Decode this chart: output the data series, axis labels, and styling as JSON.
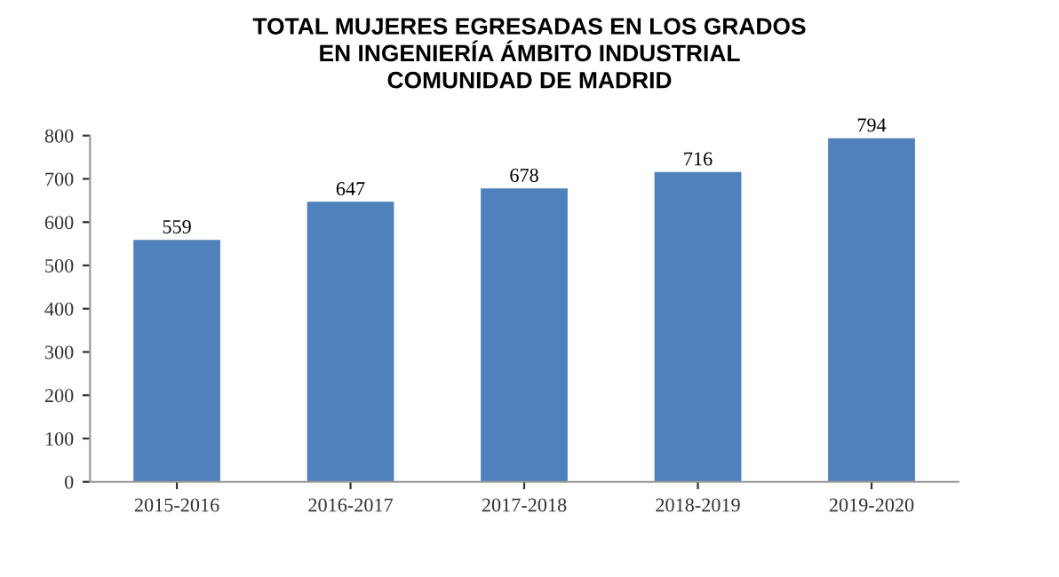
{
  "chart_data": {
    "type": "bar",
    "title": "TOTAL MUJERES EGRESADAS EN LOS GRADOS\nEN INGENIERÍA ÁMBITO INDUSTRIAL\nCOMUNIDAD DE MADRID",
    "categories": [
      "2015-2016",
      "2016-2017",
      "2017-2018",
      "2018-2019",
      "2019-2020"
    ],
    "values": [
      559,
      647,
      678,
      716,
      794
    ],
    "color": "#4f81bd",
    "ylim": [
      0,
      800
    ],
    "yticks": [
      0,
      100,
      200,
      300,
      400,
      500,
      600,
      700,
      800
    ],
    "data_labels": true,
    "grid": false
  }
}
